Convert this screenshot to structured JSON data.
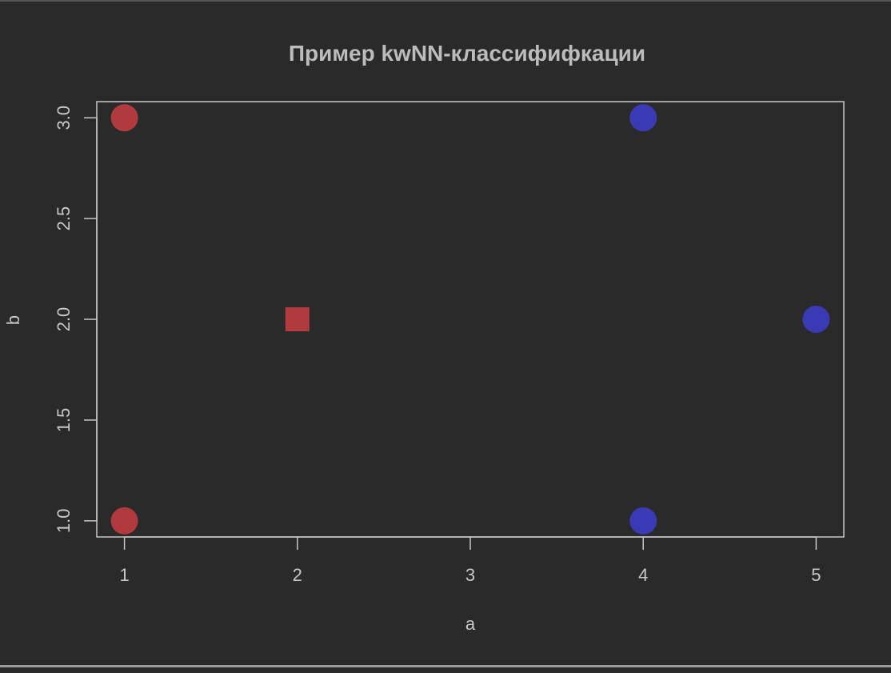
{
  "chart_data": {
    "type": "scatter",
    "title": "Пример kwNN-классифифкации",
    "xlabel": "a",
    "ylabel": "b",
    "xlim": [
      0.84,
      5.16
    ],
    "ylim": [
      0.92,
      3.08
    ],
    "x_ticks": [
      1,
      2,
      3,
      4,
      5
    ],
    "x_tick_labels": [
      "1",
      "2",
      "3",
      "4",
      "5"
    ],
    "y_ticks": [
      1.0,
      1.5,
      2.0,
      2.5,
      3.0
    ],
    "y_tick_labels": [
      "1.0",
      "1.5",
      "2.0",
      "2.5",
      "3.0"
    ],
    "grid": false,
    "legend": "none",
    "series": [
      {
        "marker": "circle",
        "color": "#b03a3e",
        "points": [
          {
            "x": 1,
            "y": 3
          },
          {
            "x": 1,
            "y": 1
          }
        ]
      },
      {
        "marker": "circle",
        "color": "#3a3ab4",
        "points": [
          {
            "x": 4,
            "y": 3
          },
          {
            "x": 4,
            "y": 1
          },
          {
            "x": 5,
            "y": 2
          }
        ]
      },
      {
        "marker": "square",
        "color": "#b03a3e",
        "points": [
          {
            "x": 2,
            "y": 2
          }
        ]
      }
    ]
  },
  "colors": {
    "background": "#2a2a2a",
    "foreground": "#c8c8c8",
    "title": "#bcbcbc"
  }
}
